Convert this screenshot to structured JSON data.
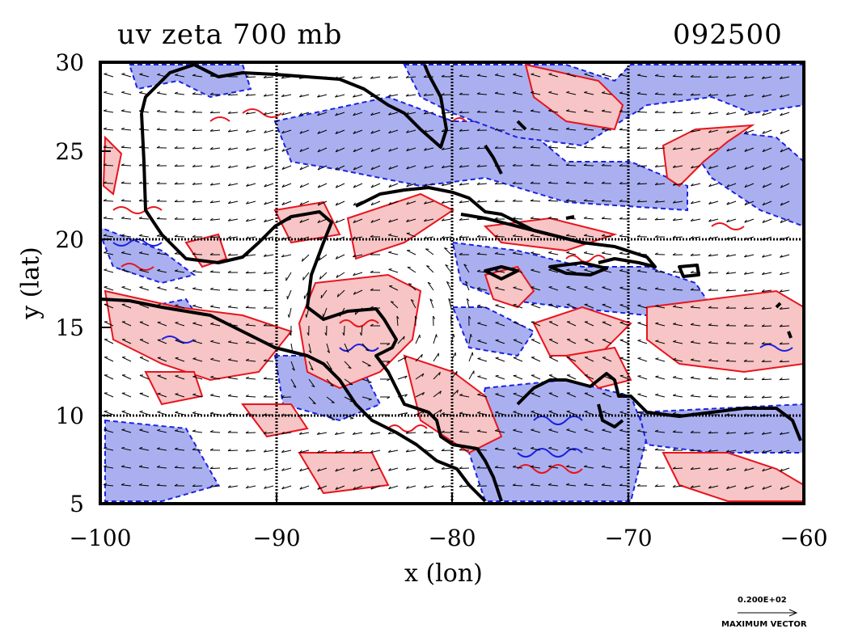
{
  "title": "uv zeta 700 mb",
  "time_label": "092500",
  "axes": {
    "xlabel": "x (lon)",
    "ylabel": "y (lat)",
    "xticks": [
      "−100",
      "−90",
      "−80",
      "−70",
      "−60"
    ],
    "yticks": [
      "30",
      "25",
      "20",
      "15",
      "10",
      "5"
    ],
    "xlim": [
      -100,
      -60
    ],
    "ylim": [
      5,
      30
    ]
  },
  "legend": {
    "vector_value": "0.200E+02",
    "vector_label": "MAXIMUM VECTOR"
  },
  "colors": {
    "positive_fill": "#f7c5c5",
    "positive_contour": "#e8141e",
    "negative_fill": "#aab0ef",
    "negative_contour": "#1a22e0",
    "coastline": "#000000",
    "grid": "#000000"
  }
}
